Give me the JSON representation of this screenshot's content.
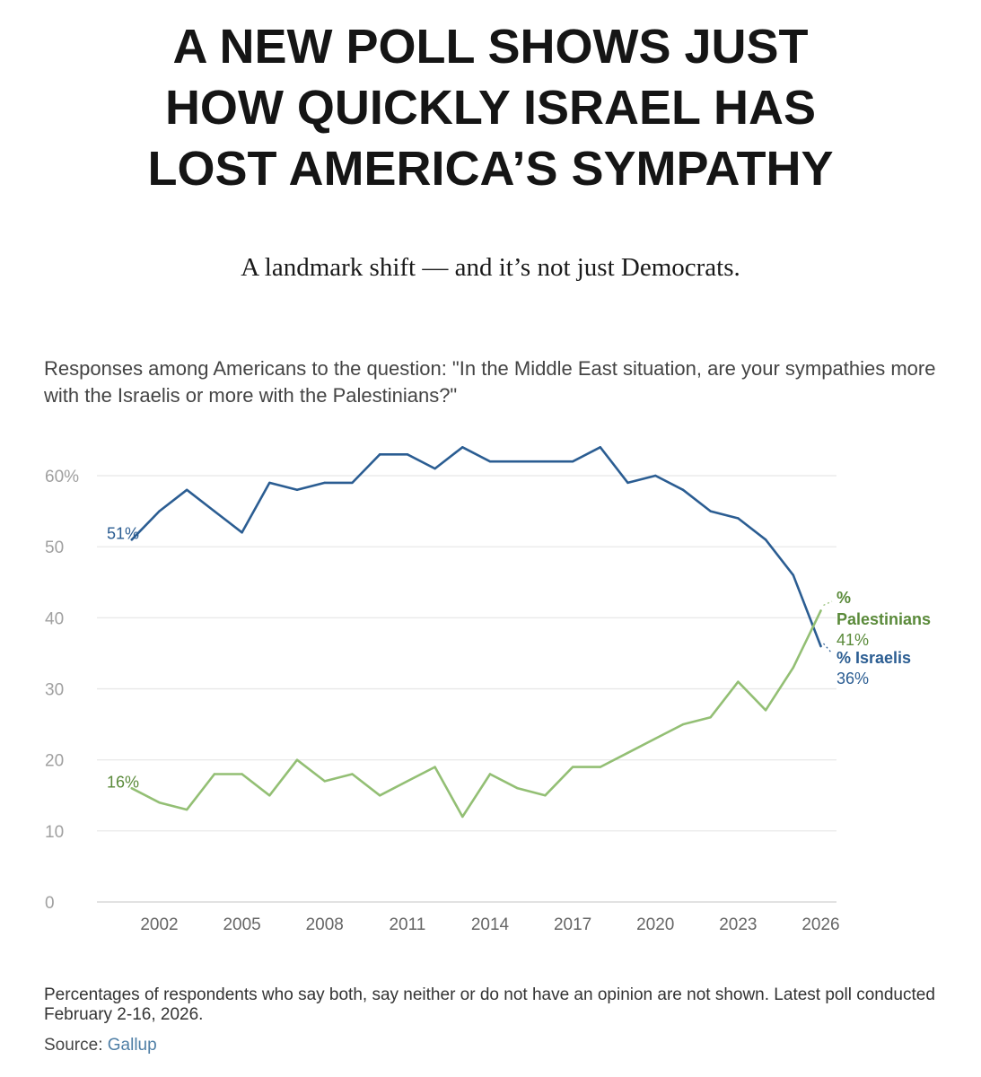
{
  "headline": {
    "line1": "A NEW POLL SHOWS JUST",
    "line2": "HOW QUICKLY ISRAEL HAS",
    "line3": "LOST AMERICA’S SYMPATHY"
  },
  "subheadline": "A landmark shift — and it’s not just Democrats.",
  "question_text": "Responses among Americans to the question: \"In the Middle East situation, are your sympathies more with the Israelis or more with the Palestinians?\"",
  "footnote": "Percentages of respondents who say both, say neither or do not have an opinion are not shown. Latest poll conducted February 2-16, 2026.",
  "source": {
    "label": "Source:",
    "name": "Gallup"
  },
  "colors": {
    "israelis": "#2b5d92",
    "palestinians": "#93bf74",
    "palestinians_label": "#5a8a3a",
    "grid": "#e6e6e6",
    "axis_text": "#a0a0a0"
  },
  "chart_data": {
    "type": "line",
    "title": "",
    "xlabel": "",
    "ylabel": "",
    "xlim": [
      2000,
      2026
    ],
    "ylim": [
      0,
      60
    ],
    "y_ticks": [
      0,
      10,
      20,
      30,
      40,
      50,
      60
    ],
    "y_tick_labels": [
      "0",
      "10",
      "20",
      "30",
      "40",
      "50",
      "60%"
    ],
    "x_ticks": [
      2002,
      2005,
      2008,
      2011,
      2014,
      2017,
      2020,
      2023,
      2026
    ],
    "x_tick_labels": [
      "2002",
      "2005",
      "2008",
      "2011",
      "2014",
      "2017",
      "2020",
      "2023",
      "2026"
    ],
    "grid": true,
    "series": [
      {
        "name": "% Israelis",
        "end_label": "36%",
        "start_label": "51%",
        "x": [
          2001,
          2002,
          2003,
          2004,
          2005,
          2006,
          2007,
          2008,
          2009,
          2010,
          2011,
          2012,
          2013,
          2014,
          2015,
          2016,
          2017,
          2018,
          2019,
          2020,
          2021,
          2022,
          2023,
          2024,
          2025,
          2026
        ],
        "y": [
          51,
          55,
          58,
          55,
          52,
          59,
          58,
          59,
          59,
          63,
          63,
          61,
          64,
          62,
          62,
          62,
          62,
          64,
          59,
          60,
          58,
          55,
          54,
          51,
          46,
          36
        ]
      },
      {
        "name": "% Palestinians",
        "end_label": "41%",
        "start_label": "16%",
        "x": [
          2001,
          2002,
          2003,
          2004,
          2005,
          2006,
          2007,
          2008,
          2009,
          2010,
          2011,
          2012,
          2013,
          2014,
          2015,
          2016,
          2017,
          2018,
          2019,
          2020,
          2021,
          2022,
          2023,
          2024,
          2025,
          2026
        ],
        "y": [
          16,
          14,
          13,
          18,
          18,
          15,
          20,
          17,
          18,
          15,
          17,
          19,
          12,
          18,
          16,
          15,
          19,
          19,
          21,
          23,
          25,
          26,
          31,
          27,
          33,
          41
        ]
      }
    ]
  }
}
